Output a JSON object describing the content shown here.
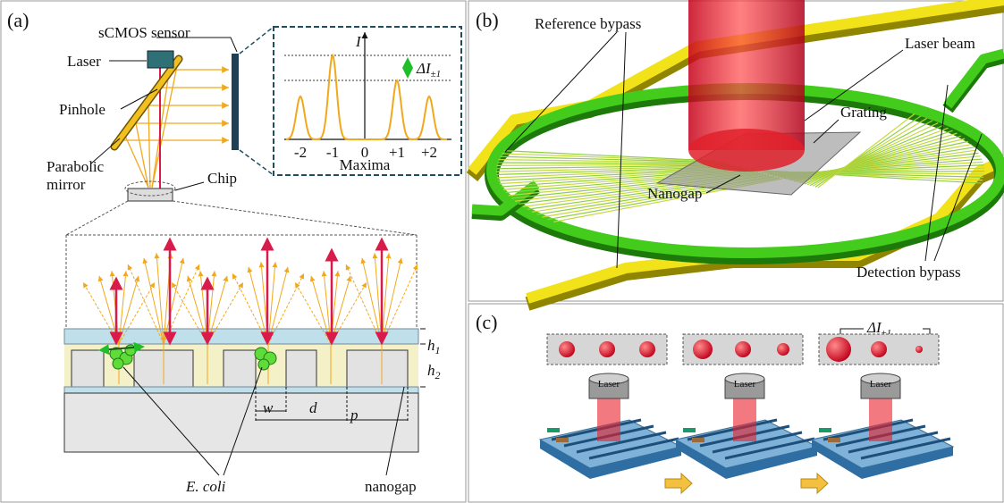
{
  "panel_a": {
    "label": "(a)",
    "sensor": "sCMOS sensor",
    "laser": "Laser",
    "pinhole": "Pinhole",
    "mirror": [
      "Parabolic",
      "mirror"
    ],
    "chip": "Chip",
    "inset": {
      "y_axis": "I",
      "delta": {
        "text": "ΔI",
        "sub": "±1"
      },
      "ticks": [
        "-2",
        "-1",
        "0",
        "+1",
        "+2"
      ],
      "x_axis": "Maxima"
    },
    "h1": {
      "text": "h",
      "sub": "1"
    },
    "h2": {
      "text": "h",
      "sub": "2"
    },
    "w": "w",
    "d": "d",
    "p": "p",
    "ecoli": "E. coli",
    "nanogap": "nanogap"
  },
  "panel_b": {
    "label": "(b)",
    "reference_bypass": "Reference bypass",
    "laser_beam": "Laser beam",
    "grating": "Grating",
    "nanogap": "Nanogap",
    "detection_bypass": "Detection bypass"
  },
  "panel_c": {
    "label": "(c)",
    "delta": {
      "text": "ΔI",
      "sub": "±1"
    },
    "laser": [
      "Laser",
      "Laser",
      "Laser"
    ]
  }
}
